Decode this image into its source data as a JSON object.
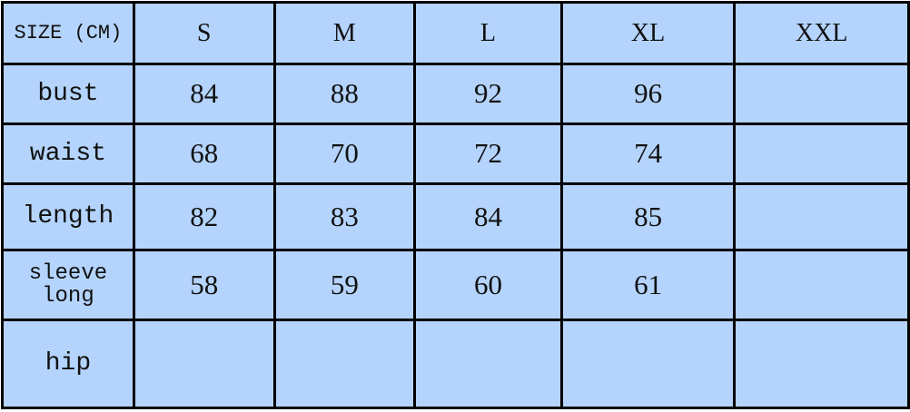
{
  "table": {
    "corner_label": "SIZE (CM)",
    "sizes": [
      "S",
      "M",
      "L",
      "XL",
      "XXL"
    ],
    "rows": [
      {
        "label": "bust",
        "values": [
          "84",
          "88",
          "92",
          "96",
          ""
        ]
      },
      {
        "label": "waist",
        "values": [
          "68",
          "70",
          "72",
          "74",
          ""
        ]
      },
      {
        "label": "length",
        "values": [
          "82",
          "83",
          "84",
          "85",
          ""
        ]
      },
      {
        "label_line1": "sleeve",
        "label_line2": "long",
        "values": [
          "58",
          "59",
          "60",
          "61",
          ""
        ]
      },
      {
        "label": "hip",
        "values": [
          "",
          "",
          "",
          "",
          ""
        ]
      }
    ]
  },
  "colors": {
    "cell_background": "#b4d4fd",
    "grid_line": "#000000"
  }
}
